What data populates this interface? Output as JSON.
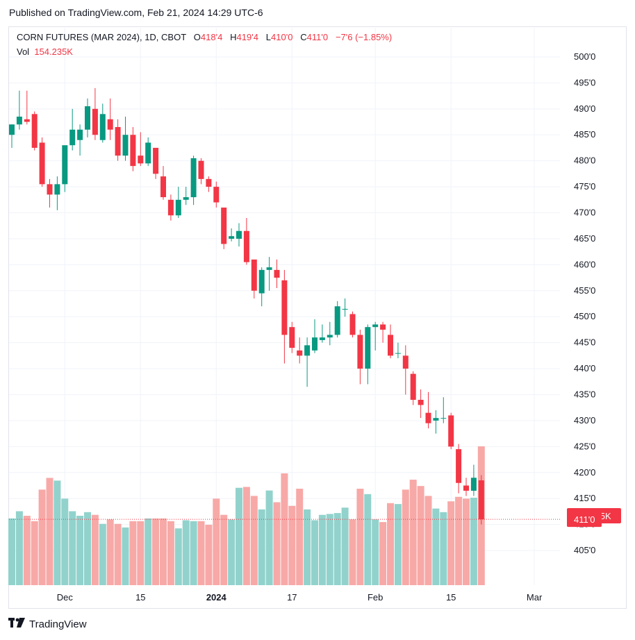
{
  "header": {
    "published": "Published on TradingView.com, Feb 21, 2024 14:29 UTC-6"
  },
  "legend": {
    "symbol": "CORN FUTURES (MAR 2024), 1D, CBOT",
    "open_label": "O",
    "open": "418'4",
    "high_label": "H",
    "high": "419'4",
    "low_label": "L",
    "low": "410'0",
    "close_label": "C",
    "close": "411'0",
    "change": "−7'6 (−1.85%)",
    "vol_label": "Vol",
    "vol": "154.235K"
  },
  "footer": {
    "brand": "TradingView"
  },
  "colors": {
    "up": "#089981",
    "down": "#f23645",
    "vol_up": "#92d2cc",
    "vol_down": "#f7a9a7",
    "grid": "#f0f3fa"
  },
  "chart_data": {
    "type": "candlestick",
    "y_unit": "cents per bushel",
    "ylim": [
      401.8,
      502.0
    ],
    "y_ticks": [
      405,
      410,
      415,
      420,
      425,
      430,
      435,
      440,
      445,
      450,
      455,
      460,
      465,
      470,
      475,
      480,
      485,
      490,
      495,
      500
    ],
    "y_tick_labels": [
      "405'0",
      "410'0",
      "415'0",
      "420'0",
      "425'0",
      "430'0",
      "435'0",
      "440'0",
      "445'0",
      "450'0",
      "455'0",
      "460'0",
      "465'0",
      "470'0",
      "475'0",
      "480'0",
      "485'0",
      "490'0",
      "495'0",
      "500'0"
    ],
    "x_tick_labels": [
      {
        "label": "Dec",
        "date": "2023-12-01",
        "bold": false
      },
      {
        "label": "15",
        "date": "2023-12-15",
        "bold": false
      },
      {
        "label": "2024",
        "date": "2024-01-02",
        "bold": true
      },
      {
        "label": "17",
        "date": "2024-01-17",
        "bold": false
      },
      {
        "label": "Feb",
        "date": "2024-02-01",
        "bold": false
      },
      {
        "label": "15",
        "date": "2024-02-15",
        "bold": false
      },
      {
        "label": "Mar",
        "date": "2024-03-01",
        "bold": false
      }
    ],
    "last_price_label": "411'0",
    "last_price": 411.0,
    "volume_label": "154.235K",
    "candles": [
      {
        "date": "2023-11-21",
        "o": 485.0,
        "h": 487.0,
        "l": 482.5,
        "c": 487.0
      },
      {
        "date": "2023-11-22",
        "o": 487.0,
        "h": 493.5,
        "l": 486.0,
        "c": 488.5
      },
      {
        "date": "2023-11-24",
        "o": 488.0,
        "h": 493.5,
        "l": 487.0,
        "c": 487.5
      },
      {
        "date": "2023-11-27",
        "o": 489.0,
        "h": 489.5,
        "l": 482.0,
        "c": 482.5
      },
      {
        "date": "2023-11-28",
        "o": 483.5,
        "h": 484.5,
        "l": 475.0,
        "c": 475.5
      },
      {
        "date": "2023-11-29",
        "o": 475.5,
        "h": 476.5,
        "l": 471.0,
        "c": 473.5
      },
      {
        "date": "2023-11-30",
        "o": 473.5,
        "h": 477.0,
        "l": 470.5,
        "c": 475.5
      },
      {
        "date": "2023-12-01",
        "o": 475.5,
        "h": 482.5,
        "l": 474.0,
        "c": 483.0
      },
      {
        "date": "2023-12-04",
        "o": 483.0,
        "h": 490.0,
        "l": 482.0,
        "c": 486.0
      },
      {
        "date": "2023-12-05",
        "o": 484.0,
        "h": 487.0,
        "l": 481.0,
        "c": 486.0
      },
      {
        "date": "2023-12-06",
        "o": 486.0,
        "h": 492.0,
        "l": 484.5,
        "c": 490.5
      },
      {
        "date": "2023-12-07",
        "o": 490.0,
        "h": 494.0,
        "l": 484.0,
        "c": 485.0
      },
      {
        "date": "2023-12-08",
        "o": 484.0,
        "h": 491.0,
        "l": 483.5,
        "c": 489.0
      },
      {
        "date": "2023-12-11",
        "o": 488.0,
        "h": 492.0,
        "l": 484.0,
        "c": 486.0
      },
      {
        "date": "2023-12-12",
        "o": 486.5,
        "h": 488.0,
        "l": 480.0,
        "c": 481.0
      },
      {
        "date": "2023-12-13",
        "o": 481.0,
        "h": 488.5,
        "l": 480.0,
        "c": 485.0
      },
      {
        "date": "2023-12-14",
        "o": 485.0,
        "h": 486.5,
        "l": 478.0,
        "c": 479.0
      },
      {
        "date": "2023-12-15",
        "o": 481.0,
        "h": 485.5,
        "l": 479.0,
        "c": 479.5
      },
      {
        "date": "2023-12-18",
        "o": 479.5,
        "h": 484.5,
        "l": 479.0,
        "c": 483.5
      },
      {
        "date": "2023-12-19",
        "o": 482.5,
        "h": 482.5,
        "l": 476.5,
        "c": 477.5
      },
      {
        "date": "2023-12-20",
        "o": 477.0,
        "h": 479.0,
        "l": 472.5,
        "c": 473.0
      },
      {
        "date": "2023-12-21",
        "o": 472.5,
        "h": 473.5,
        "l": 468.5,
        "c": 469.5
      },
      {
        "date": "2023-12-22",
        "o": 469.5,
        "h": 475.0,
        "l": 469.0,
        "c": 472.5
      },
      {
        "date": "2023-12-26",
        "o": 472.5,
        "h": 475.0,
        "l": 471.5,
        "c": 473.0
      },
      {
        "date": "2023-12-27",
        "o": 473.0,
        "h": 481.0,
        "l": 471.5,
        "c": 480.5
      },
      {
        "date": "2023-12-28",
        "o": 480.0,
        "h": 480.5,
        "l": 475.5,
        "c": 476.5
      },
      {
        "date": "2023-12-29",
        "o": 476.5,
        "h": 477.0,
        "l": 474.0,
        "c": 475.0
      },
      {
        "date": "2024-01-02",
        "o": 475.0,
        "h": 476.0,
        "l": 471.0,
        "c": 472.0
      },
      {
        "date": "2024-01-03",
        "o": 471.0,
        "h": 471.0,
        "l": 463.0,
        "c": 464.0
      },
      {
        "date": "2024-01-04",
        "o": 465.0,
        "h": 467.0,
        "l": 464.5,
        "c": 465.5
      },
      {
        "date": "2024-01-05",
        "o": 465.0,
        "h": 468.0,
        "l": 463.5,
        "c": 466.5
      },
      {
        "date": "2024-01-08",
        "o": 466.5,
        "h": 469.0,
        "l": 460.0,
        "c": 460.5
      },
      {
        "date": "2024-01-09",
        "o": 461.0,
        "h": 461.0,
        "l": 453.5,
        "c": 455.0
      },
      {
        "date": "2024-01-10",
        "o": 454.5,
        "h": 459.5,
        "l": 452.0,
        "c": 459.0
      },
      {
        "date": "2024-01-11",
        "o": 459.0,
        "h": 461.5,
        "l": 455.0,
        "c": 459.5
      },
      {
        "date": "2024-01-12",
        "o": 459.0,
        "h": 461.0,
        "l": 455.5,
        "c": 457.5
      },
      {
        "date": "2024-01-16",
        "o": 457.0,
        "h": 459.0,
        "l": 441.0,
        "c": 446.5
      },
      {
        "date": "2024-01-17",
        "o": 448.0,
        "h": 449.0,
        "l": 443.0,
        "c": 444.0
      },
      {
        "date": "2024-01-18",
        "o": 443.5,
        "h": 446.0,
        "l": 441.0,
        "c": 442.5
      },
      {
        "date": "2024-01-19",
        "o": 442.5,
        "h": 446.0,
        "l": 436.5,
        "c": 444.5
      },
      {
        "date": "2024-01-22",
        "o": 443.5,
        "h": 449.5,
        "l": 443.0,
        "c": 446.0
      },
      {
        "date": "2024-01-23",
        "o": 445.5,
        "h": 448.5,
        "l": 445.0,
        "c": 446.0
      },
      {
        "date": "2024-01-24",
        "o": 446.0,
        "h": 449.0,
        "l": 444.5,
        "c": 446.5
      },
      {
        "date": "2024-01-25",
        "o": 446.5,
        "h": 453.0,
        "l": 446.0,
        "c": 452.0
      },
      {
        "date": "2024-01-26",
        "o": 451.5,
        "h": 453.5,
        "l": 450.0,
        "c": 451.5
      },
      {
        "date": "2024-01-29",
        "o": 450.5,
        "h": 451.0,
        "l": 446.0,
        "c": 446.5
      },
      {
        "date": "2024-01-30",
        "o": 446.5,
        "h": 447.5,
        "l": 437.0,
        "c": 440.0
      },
      {
        "date": "2024-01-31",
        "o": 440.0,
        "h": 448.5,
        "l": 437.0,
        "c": 448.0
      },
      {
        "date": "2024-02-01",
        "o": 448.0,
        "h": 449.0,
        "l": 443.5,
        "c": 448.5
      },
      {
        "date": "2024-02-02",
        "o": 448.5,
        "h": 449.0,
        "l": 445.0,
        "c": 447.5
      },
      {
        "date": "2024-02-05",
        "o": 446.5,
        "h": 448.5,
        "l": 442.0,
        "c": 442.5
      },
      {
        "date": "2024-02-06",
        "o": 443.0,
        "h": 445.0,
        "l": 442.0,
        "c": 443.0
      },
      {
        "date": "2024-02-07",
        "o": 442.5,
        "h": 444.5,
        "l": 435.0,
        "c": 440.0
      },
      {
        "date": "2024-02-08",
        "o": 439.0,
        "h": 439.5,
        "l": 433.0,
        "c": 434.0
      },
      {
        "date": "2024-02-09",
        "o": 434.0,
        "h": 436.0,
        "l": 430.5,
        "c": 433.0
      },
      {
        "date": "2024-02-12",
        "o": 431.5,
        "h": 435.5,
        "l": 428.5,
        "c": 429.5
      },
      {
        "date": "2024-02-13",
        "o": 430.0,
        "h": 432.0,
        "l": 427.5,
        "c": 430.5
      },
      {
        "date": "2024-02-14",
        "o": 430.5,
        "h": 434.5,
        "l": 429.5,
        "c": 430.5
      },
      {
        "date": "2024-02-15",
        "o": 431.0,
        "h": 431.5,
        "l": 424.5,
        "c": 425.0
      },
      {
        "date": "2024-02-16",
        "o": 424.5,
        "h": 425.5,
        "l": 416.0,
        "c": 418.0
      },
      {
        "date": "2024-02-19",
        "o": 417.5,
        "h": 419.0,
        "l": 415.5,
        "c": 416.5
      },
      {
        "date": "2024-02-20",
        "o": 416.5,
        "h": 421.5,
        "l": 415.5,
        "c": 419.0
      },
      {
        "date": "2024-02-21",
        "o": 418.5,
        "h": 419.5,
        "l": 410.0,
        "c": 411.0
      }
    ],
    "volume": [
      74,
      82,
      77,
      71,
      106,
      119,
      116,
      96,
      82,
      77,
      81,
      78,
      68,
      73,
      68,
      64,
      71,
      71,
      74,
      74,
      74,
      71,
      63,
      72,
      71,
      71,
      67,
      96,
      78,
      73,
      108,
      109,
      99,
      84,
      105,
      92,
      124,
      88,
      107,
      84,
      72,
      78,
      79,
      80,
      86,
      73,
      107,
      101,
      73,
      70,
      91,
      90,
      106,
      117,
      110,
      99,
      85,
      81,
      93,
      98,
      96,
      97,
      154
    ]
  }
}
